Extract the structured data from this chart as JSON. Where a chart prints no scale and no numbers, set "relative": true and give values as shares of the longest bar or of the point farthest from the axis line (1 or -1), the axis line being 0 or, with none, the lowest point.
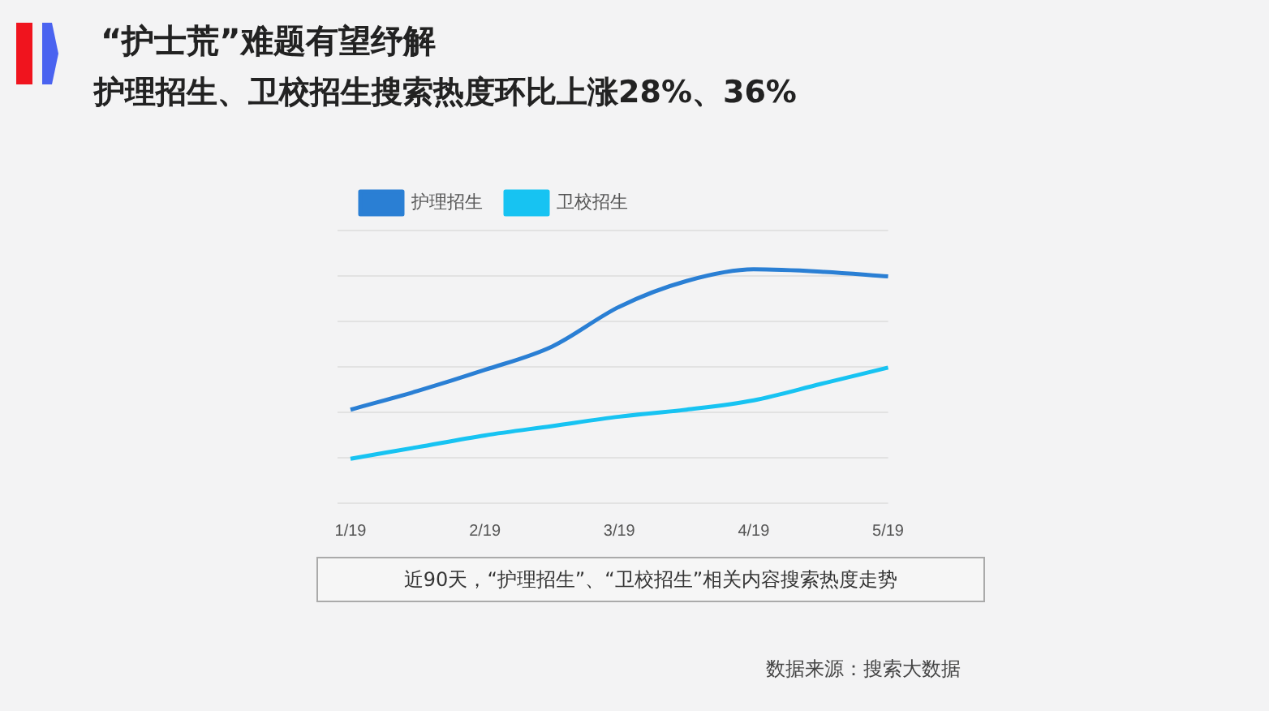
{
  "chart_data": {
    "type": "line",
    "title": "“护士荒”难题有望纾解",
    "subtitle": "护理招生、卫校招生搜索热度环比上涨28%、36%",
    "categories": [
      "1/19",
      null,
      "2/19",
      null,
      "3/19",
      null,
      "4/19",
      null,
      "5/19"
    ],
    "relative": true,
    "grid": "y",
    "legend": "top left",
    "marker": "none",
    "series": [
      {
        "name": "护理招生",
        "color": "#2a7fd4",
        "values": [
          0.4,
          0.48,
          0.57,
          0.67,
          0.84,
          0.95,
          1,
          0.99,
          0.97
        ]
      },
      {
        "name": "卫校招生",
        "color": "#17c3f2",
        "values": [
          0.19,
          0.24,
          0.29,
          0.33,
          0.37,
          0.4,
          0.44,
          0.51,
          0.58
        ]
      }
    ],
    "annotations": [
      "近90天，“护理招生”、“卫校招生”相关内容搜索热度走势",
      "数据来源：搜索大数据"
    ]
  }
}
